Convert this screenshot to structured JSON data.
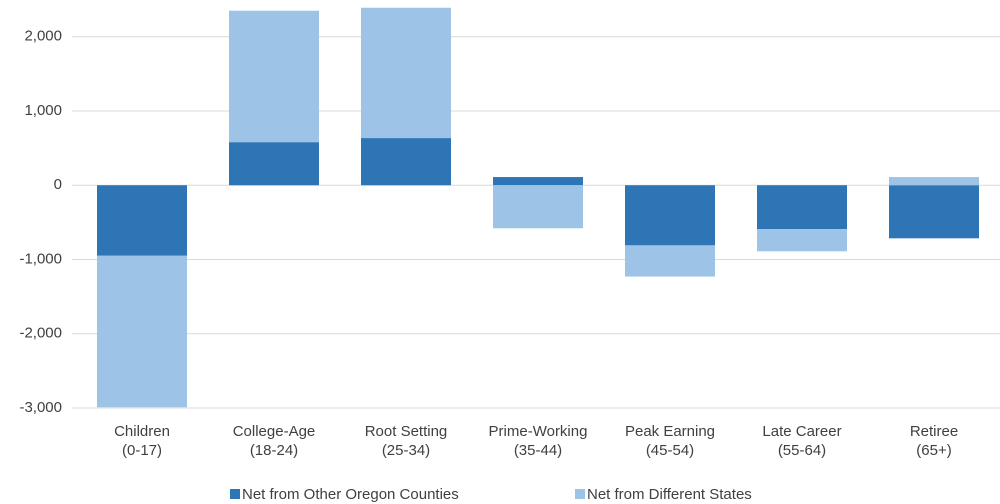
{
  "chart_data": {
    "type": "stacked-bar",
    "categories": [
      [
        "Children",
        "(0-17)"
      ],
      [
        "College-Age",
        "(18-24)"
      ],
      [
        "Root Setting",
        "(25-34)"
      ],
      [
        "Prime-Working",
        "(35-44)"
      ],
      [
        "Peak Earning",
        "(45-54)"
      ],
      [
        "Late Career",
        "(55-64)"
      ],
      [
        "Retiree",
        "(65+)"
      ]
    ],
    "series": [
      {
        "name": "Net from Other Oregon Counties",
        "color": "#2e75b6",
        "values": [
          -950,
          580,
          635,
          110,
          -810,
          -590,
          -715
        ]
      },
      {
        "name": "Net from Different States",
        "color": "#9dc3e6",
        "values": [
          -2040,
          1770,
          1755,
          -580,
          -420,
          -300,
          110
        ]
      }
    ],
    "ylim": [
      -3000,
      2400
    ],
    "yticks": [
      {
        "value": -3000,
        "label": "-3,000"
      },
      {
        "value": -2000,
        "label": "-2,000"
      },
      {
        "value": -1000,
        "label": "-1,000"
      },
      0,
      {
        "value": 1000,
        "label": "1,000"
      },
      {
        "value": 2000,
        "label": "2,000"
      }
    ],
    "grid": true,
    "legend": "bottom"
  }
}
